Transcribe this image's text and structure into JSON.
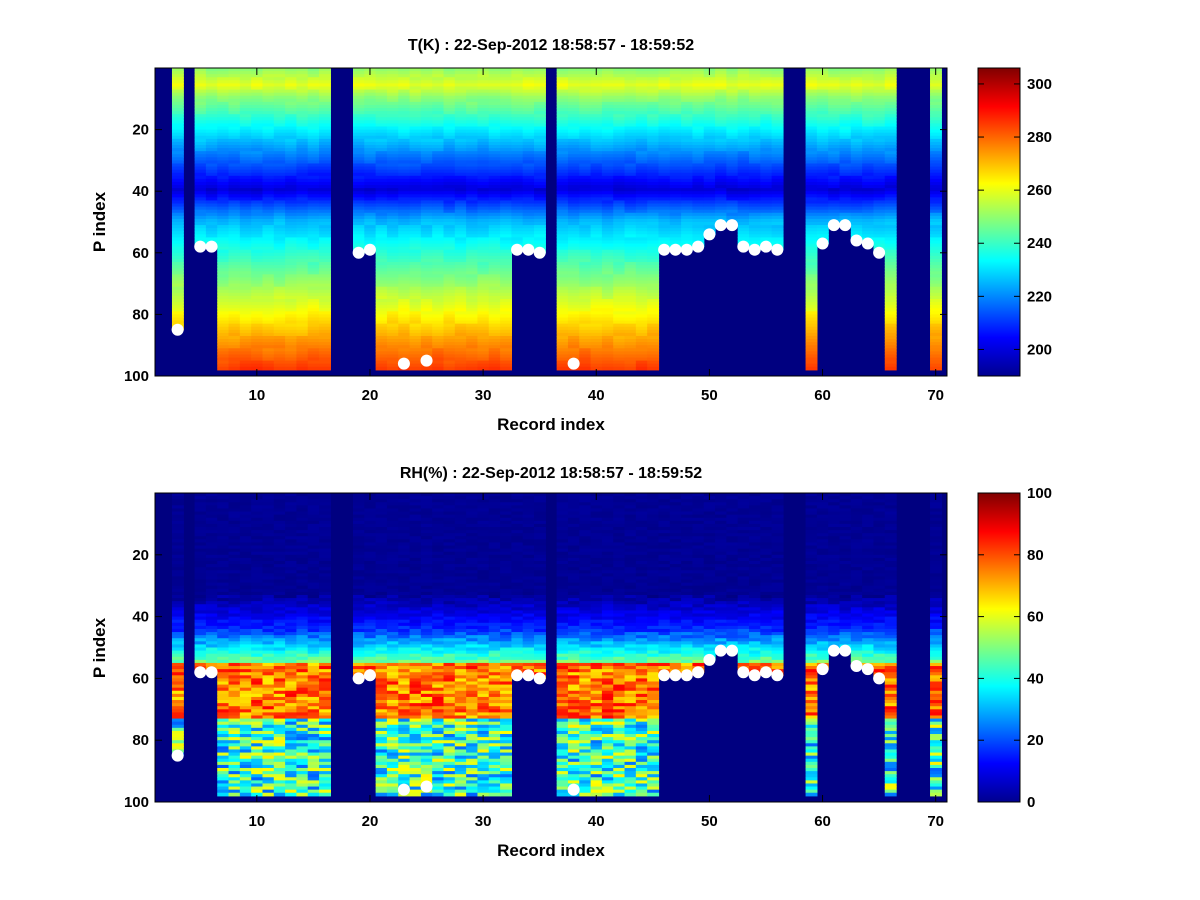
{
  "chart_data": [
    {
      "type": "heatmap",
      "title": "T(K) : 22-Sep-2012 18:58:57 - 18:59:52",
      "xlabel": "Record index",
      "ylabel": "P index",
      "xlim": [
        1,
        71
      ],
      "ylim": [
        0,
        100
      ],
      "xticks": [
        10,
        20,
        30,
        40,
        50,
        60,
        70
      ],
      "yticks": [
        20,
        40,
        60,
        80,
        100
      ],
      "colorbar": {
        "min": 190,
        "max": 306,
        "ticks": [
          200,
          220,
          240,
          260,
          280,
          300
        ]
      },
      "surface_p": [
        [
          3,
          85
        ],
        [
          5,
          58
        ],
        [
          6,
          58
        ],
        [
          7,
          98
        ],
        [
          8,
          98
        ],
        [
          9,
          98
        ],
        [
          10,
          98
        ],
        [
          11,
          98
        ],
        [
          12,
          98
        ],
        [
          13,
          98
        ],
        [
          14,
          98
        ],
        [
          15,
          98
        ],
        [
          16,
          98
        ],
        [
          19,
          60
        ],
        [
          20,
          59
        ],
        [
          21,
          98
        ],
        [
          22,
          98
        ],
        [
          23,
          98
        ],
        [
          24,
          98
        ],
        [
          25,
          98
        ],
        [
          26,
          98
        ],
        [
          27,
          98
        ],
        [
          28,
          98
        ],
        [
          29,
          98
        ],
        [
          30,
          98
        ],
        [
          31,
          98
        ],
        [
          32,
          98
        ],
        [
          33,
          59
        ],
        [
          34,
          59
        ],
        [
          35,
          60
        ],
        [
          37,
          98
        ],
        [
          38,
          98
        ],
        [
          39,
          98
        ],
        [
          40,
          98
        ],
        [
          41,
          98
        ],
        [
          42,
          98
        ],
        [
          43,
          98
        ],
        [
          44,
          98
        ],
        [
          45,
          98
        ],
        [
          46,
          59
        ],
        [
          47,
          59
        ],
        [
          48,
          59
        ],
        [
          49,
          58
        ],
        [
          50,
          54
        ],
        [
          51,
          51
        ],
        [
          52,
          51
        ],
        [
          53,
          58
        ],
        [
          54,
          59
        ],
        [
          55,
          58
        ],
        [
          56,
          59
        ],
        [
          59,
          98
        ],
        [
          60,
          57
        ],
        [
          61,
          51
        ],
        [
          62,
          51
        ],
        [
          63,
          56
        ],
        [
          64,
          57
        ],
        [
          65,
          60
        ],
        [
          66,
          98
        ],
        [
          70,
          98
        ]
      ],
      "markers": [
        [
          3,
          85
        ],
        [
          5,
          58
        ],
        [
          6,
          58
        ],
        [
          19,
          60
        ],
        [
          20,
          59
        ],
        [
          23,
          96
        ],
        [
          25,
          95
        ],
        [
          33,
          59
        ],
        [
          34,
          59
        ],
        [
          35,
          60
        ],
        [
          38,
          96
        ],
        [
          46,
          59
        ],
        [
          47,
          59
        ],
        [
          48,
          59
        ],
        [
          49,
          58
        ],
        [
          50,
          54
        ],
        [
          51,
          51
        ],
        [
          52,
          51
        ],
        [
          53,
          58
        ],
        [
          54,
          59
        ],
        [
          55,
          58
        ],
        [
          56,
          59
        ],
        [
          60,
          57
        ],
        [
          61,
          51
        ],
        [
          62,
          51
        ],
        [
          63,
          56
        ],
        [
          64,
          57
        ],
        [
          65,
          60
        ]
      ]
    },
    {
      "type": "heatmap",
      "title": "RH(%) : 22-Sep-2012 18:58:57 - 18:59:52",
      "xlabel": "Record index",
      "ylabel": "P index",
      "xlim": [
        1,
        71
      ],
      "ylim": [
        0,
        100
      ],
      "xticks": [
        10,
        20,
        30,
        40,
        50,
        60,
        70
      ],
      "yticks": [
        20,
        40,
        60,
        80,
        100
      ],
      "colorbar": {
        "min": 0,
        "max": 100,
        "ticks": [
          0,
          20,
          40,
          60,
          80,
          100
        ]
      },
      "markers": [
        [
          3,
          85
        ],
        [
          5,
          58
        ],
        [
          6,
          58
        ],
        [
          19,
          60
        ],
        [
          20,
          59
        ],
        [
          23,
          96
        ],
        [
          25,
          95
        ],
        [
          33,
          59
        ],
        [
          34,
          59
        ],
        [
          35,
          60
        ],
        [
          38,
          96
        ],
        [
          46,
          59
        ],
        [
          47,
          59
        ],
        [
          48,
          59
        ],
        [
          49,
          58
        ],
        [
          50,
          54
        ],
        [
          51,
          51
        ],
        [
          52,
          51
        ],
        [
          53,
          58
        ],
        [
          54,
          59
        ],
        [
          55,
          58
        ],
        [
          56,
          59
        ],
        [
          60,
          57
        ],
        [
          61,
          51
        ],
        [
          62,
          51
        ],
        [
          63,
          56
        ],
        [
          64,
          57
        ],
        [
          65,
          60
        ]
      ]
    }
  ]
}
